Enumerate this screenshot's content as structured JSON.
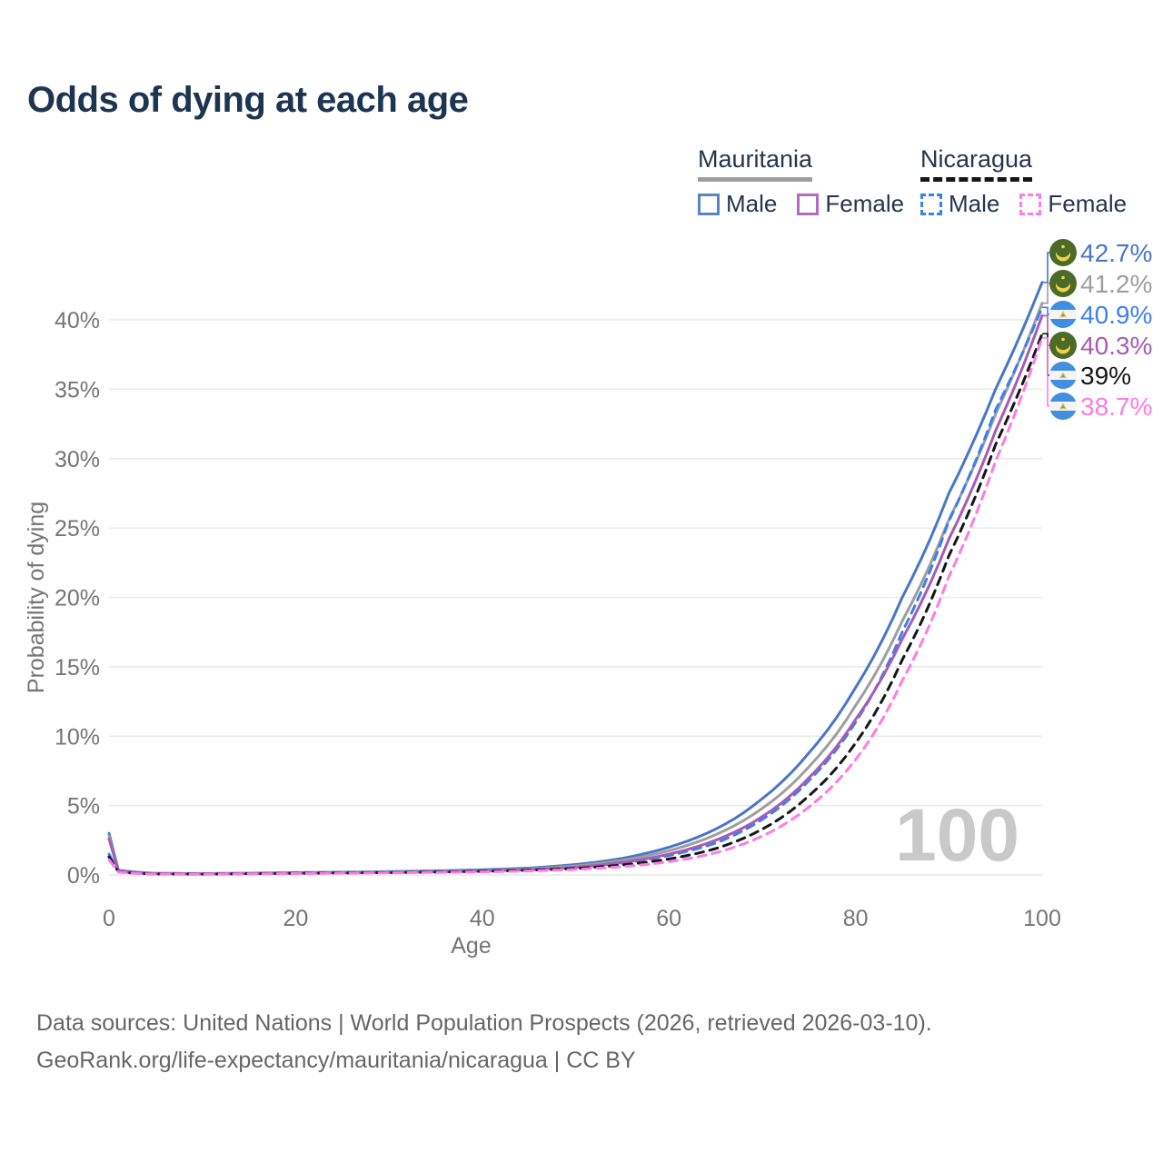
{
  "title": "Odds of dying at each age",
  "legend": {
    "mauritania": {
      "country": "Mauritania",
      "male": "Male",
      "female": "Female"
    },
    "nicaragua": {
      "country": "Nicaragua",
      "male": "Male",
      "female": "Female"
    }
  },
  "colors": {
    "title_text": "#1E3552",
    "axis_text": "#757575",
    "gridline": "#E9E9E9",
    "watermark": "#C9C9C9",
    "mauritania_male": "#4876C8",
    "mauritania_both": "#9E9E9E",
    "mauritania_female": "#A55CB5",
    "nicaragua_male": "#3D7FF0",
    "nicaragua_both": "#161616",
    "nicaragua_female": "#FF7BE5"
  },
  "chart_data": {
    "type": "line",
    "title": "Odds of dying at each age",
    "xlabel": "Age",
    "ylabel": "Probability of dying",
    "xlim": [
      0,
      100
    ],
    "ylim": [
      0,
      44
    ],
    "xticks": [
      "0",
      "20",
      "40",
      "60",
      "80",
      "100"
    ],
    "xtick_values": [
      0,
      20,
      40,
      60,
      80,
      100
    ],
    "yticks": [
      "0%",
      "5%",
      "10%",
      "15%",
      "20%",
      "25%",
      "30%",
      "35%",
      "40%"
    ],
    "ytick_values": [
      0,
      5,
      10,
      15,
      20,
      25,
      30,
      35,
      40
    ],
    "grid": "horizontal",
    "legend_position": "top-right",
    "watermark": "100",
    "x": [
      0,
      1,
      5,
      10,
      15,
      20,
      25,
      30,
      35,
      40,
      45,
      50,
      55,
      60,
      65,
      70,
      75,
      80,
      85,
      90,
      95,
      100
    ],
    "series": [
      {
        "name": "Mauritania Male",
        "country": "mauritania",
        "sex": "male",
        "style": "solid",
        "color": "#4876C8",
        "end_label": "42.7%",
        "values": [
          3.0,
          0.35,
          0.12,
          0.1,
          0.13,
          0.17,
          0.2,
          0.24,
          0.3,
          0.38,
          0.5,
          0.75,
          1.2,
          2.0,
          3.3,
          5.5,
          8.8,
          13.5,
          20.0,
          27.5,
          35.0,
          42.7
        ]
      },
      {
        "name": "Mauritania",
        "country": "mauritania",
        "sex": "both",
        "style": "solid",
        "color": "#9E9E9E",
        "end_label": "41.2%",
        "values": [
          2.8,
          0.32,
          0.11,
          0.09,
          0.12,
          0.15,
          0.18,
          0.21,
          0.26,
          0.33,
          0.44,
          0.65,
          1.05,
          1.75,
          2.9,
          4.8,
          7.8,
          12.2,
          18.3,
          25.6,
          33.2,
          41.2
        ]
      },
      {
        "name": "Nicaragua Male",
        "country": "nicaragua",
        "sex": "male",
        "style": "dashed",
        "color": "#3D7FF0",
        "end_label": "40.9%",
        "values": [
          1.5,
          0.25,
          0.08,
          0.07,
          0.1,
          0.14,
          0.17,
          0.2,
          0.24,
          0.3,
          0.4,
          0.55,
          0.85,
          1.4,
          2.3,
          4.0,
          6.8,
          11.0,
          17.5,
          25.5,
          33.5,
          40.9
        ]
      },
      {
        "name": "Mauritania Female",
        "country": "mauritania",
        "sex": "female",
        "style": "solid",
        "color": "#A55CB5",
        "end_label": "40.3%",
        "values": [
          2.6,
          0.3,
          0.1,
          0.08,
          0.1,
          0.13,
          0.15,
          0.18,
          0.22,
          0.28,
          0.38,
          0.55,
          0.9,
          1.5,
          2.5,
          4.2,
          7.0,
          11.2,
          17.0,
          24.2,
          32.0,
          40.3
        ]
      },
      {
        "name": "Nicaragua",
        "country": "nicaragua",
        "sex": "both",
        "style": "dashed",
        "color": "#161616",
        "end_label": "39%",
        "values": [
          1.3,
          0.22,
          0.07,
          0.06,
          0.09,
          0.12,
          0.15,
          0.17,
          0.21,
          0.26,
          0.34,
          0.47,
          0.72,
          1.15,
          1.9,
          3.3,
          5.7,
          9.5,
          15.5,
          23.0,
          31.0,
          39.0
        ]
      },
      {
        "name": "Nicaragua Female",
        "country": "nicaragua",
        "sex": "female",
        "style": "dashed",
        "color": "#FF7BE5",
        "end_label": "38.7%",
        "values": [
          1.1,
          0.2,
          0.06,
          0.05,
          0.08,
          0.1,
          0.13,
          0.15,
          0.18,
          0.22,
          0.29,
          0.4,
          0.6,
          0.95,
          1.6,
          2.8,
          4.9,
          8.3,
          14.0,
          21.5,
          29.8,
          38.7
        ]
      }
    ]
  },
  "footer": {
    "line1": "Data sources: United Nations | World Population Prospects (2026, retrieved 2026-03-10).",
    "line2": "GeoRank.org/life-expectancy/mauritania/nicaragua | CC BY"
  }
}
